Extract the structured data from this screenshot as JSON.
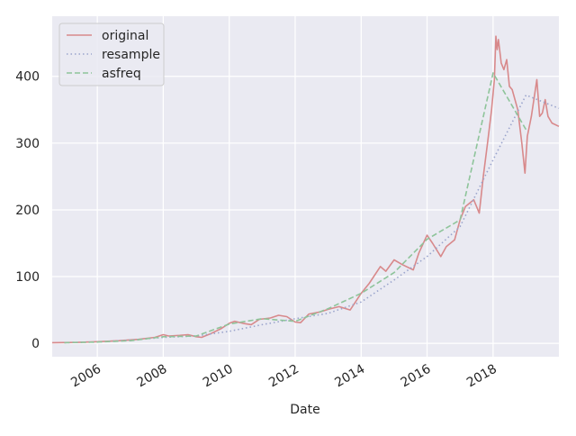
{
  "chart_data": {
    "type": "line",
    "xlabel": "Date",
    "ylabel": "",
    "ylim": [
      -20,
      490
    ],
    "x_range": [
      "2004-08-19",
      "2019-12-31"
    ],
    "grid": true,
    "legend_position": "top-left",
    "x_ticks": [
      {
        "date": "2006-01-01",
        "label": "2006"
      },
      {
        "date": "2008-01-01",
        "label": "2008"
      },
      {
        "date": "2010-01-01",
        "label": "2010"
      },
      {
        "date": "2012-01-01",
        "label": "2012"
      },
      {
        "date": "2014-01-01",
        "label": "2014"
      },
      {
        "date": "2016-01-01",
        "label": "2016"
      },
      {
        "date": "2018-01-01",
        "label": "2018"
      }
    ],
    "y_ticks": [
      {
        "value": 0,
        "label": "0"
      },
      {
        "value": 100,
        "label": "100"
      },
      {
        "value": 200,
        "label": "200"
      },
      {
        "value": 300,
        "label": "300"
      },
      {
        "value": 400,
        "label": "400"
      }
    ],
    "series": [
      {
        "name": "original",
        "color": "#d8898b",
        "style": "solid",
        "points": [
          [
            "2004-08-19",
            1
          ],
          [
            "2005-06-01",
            1.5
          ],
          [
            "2006-01-01",
            2.5
          ],
          [
            "2006-09-01",
            4
          ],
          [
            "2007-04-01",
            6
          ],
          [
            "2007-10-01",
            9
          ],
          [
            "2008-01-01",
            13
          ],
          [
            "2008-03-01",
            11
          ],
          [
            "2008-07-01",
            12
          ],
          [
            "2008-10-01",
            13
          ],
          [
            "2009-01-01",
            10
          ],
          [
            "2009-03-01",
            9
          ],
          [
            "2009-06-01",
            14
          ],
          [
            "2009-10-01",
            22
          ],
          [
            "2010-01-01",
            30
          ],
          [
            "2010-03-01",
            33
          ],
          [
            "2010-06-01",
            30
          ],
          [
            "2010-09-01",
            28
          ],
          [
            "2010-12-01",
            36
          ],
          [
            "2011-04-01",
            38
          ],
          [
            "2011-07-01",
            42
          ],
          [
            "2011-10-01",
            40
          ],
          [
            "2012-01-01",
            32
          ],
          [
            "2012-03-01",
            31
          ],
          [
            "2012-06-01",
            44
          ],
          [
            "2012-10-01",
            47
          ],
          [
            "2013-01-01",
            51
          ],
          [
            "2013-05-01",
            55
          ],
          [
            "2013-09-01",
            50
          ],
          [
            "2014-01-01",
            75
          ],
          [
            "2014-04-01",
            90
          ],
          [
            "2014-08-01",
            115
          ],
          [
            "2014-10-01",
            108
          ],
          [
            "2015-01-01",
            125
          ],
          [
            "2015-04-01",
            118
          ],
          [
            "2015-08-01",
            110
          ],
          [
            "2015-10-01",
            135
          ],
          [
            "2016-01-01",
            162
          ],
          [
            "2016-03-01",
            150
          ],
          [
            "2016-06-01",
            130
          ],
          [
            "2016-08-01",
            145
          ],
          [
            "2016-11-01",
            155
          ],
          [
            "2017-01-01",
            185
          ],
          [
            "2017-03-01",
            205
          ],
          [
            "2017-06-01",
            215
          ],
          [
            "2017-08-01",
            195
          ],
          [
            "2017-09-15",
            250
          ],
          [
            "2017-11-01",
            300
          ],
          [
            "2017-12-15",
            350
          ],
          [
            "2018-01-15",
            395
          ],
          [
            "2018-02-01",
            460
          ],
          [
            "2018-02-15",
            440
          ],
          [
            "2018-03-01",
            455
          ],
          [
            "2018-04-01",
            420
          ],
          [
            "2018-05-01",
            410
          ],
          [
            "2018-06-01",
            425
          ],
          [
            "2018-07-01",
            385
          ],
          [
            "2018-08-01",
            380
          ],
          [
            "2018-10-01",
            350
          ],
          [
            "2018-11-15",
            300
          ],
          [
            "2018-12-20",
            255
          ],
          [
            "2019-01-15",
            310
          ],
          [
            "2019-03-01",
            340
          ],
          [
            "2019-05-01",
            395
          ],
          [
            "2019-06-01",
            340
          ],
          [
            "2019-07-01",
            345
          ],
          [
            "2019-08-01",
            365
          ],
          [
            "2019-09-01",
            340
          ],
          [
            "2019-10-15",
            330
          ],
          [
            "2019-12-31",
            325
          ]
        ]
      },
      {
        "name": "resample",
        "color": "#9aa4cc",
        "style": "dotted",
        "points": [
          [
            "2005-01-01",
            1
          ],
          [
            "2006-01-01",
            2
          ],
          [
            "2007-01-01",
            5
          ],
          [
            "2008-01-01",
            9
          ],
          [
            "2009-01-01",
            11
          ],
          [
            "2010-01-01",
            18
          ],
          [
            "2011-01-01",
            28
          ],
          [
            "2012-01-01",
            37
          ],
          [
            "2013-01-01",
            45
          ],
          [
            "2014-01-01",
            62
          ],
          [
            "2015-01-01",
            95
          ],
          [
            "2016-01-01",
            130
          ],
          [
            "2017-01-01",
            175
          ],
          [
            "2018-01-01",
            275
          ],
          [
            "2019-01-01",
            372
          ],
          [
            "2019-12-31",
            352
          ]
        ]
      },
      {
        "name": "asfreq",
        "color": "#8ec49a",
        "style": "dashed",
        "points": [
          [
            "2005-01-01",
            1
          ],
          [
            "2006-01-01",
            2
          ],
          [
            "2007-01-01",
            4
          ],
          [
            "2008-01-01",
            10
          ],
          [
            "2009-01-01",
            11
          ],
          [
            "2010-01-01",
            29
          ],
          [
            "2011-01-01",
            37
          ],
          [
            "2012-01-01",
            33
          ],
          [
            "2013-01-01",
            52
          ],
          [
            "2014-01-01",
            75
          ],
          [
            "2015-01-01",
            106
          ],
          [
            "2016-01-01",
            156
          ],
          [
            "2017-01-01",
            185
          ],
          [
            "2018-01-01",
            405
          ],
          [
            "2019-01-01",
            320
          ]
        ]
      }
    ]
  }
}
